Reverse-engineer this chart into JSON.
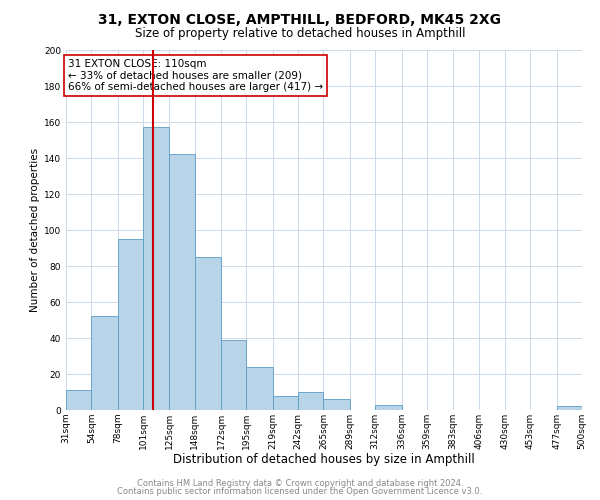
{
  "title_line1": "31, EXTON CLOSE, AMPTHILL, BEDFORD, MK45 2XG",
  "title_line2": "Size of property relative to detached houses in Ampthill",
  "xlabel": "Distribution of detached houses by size in Ampthill",
  "ylabel": "Number of detached properties",
  "bar_left_edges": [
    31,
    54,
    78,
    101,
    125,
    148,
    172,
    195,
    219,
    242,
    265,
    289,
    312,
    336,
    359,
    383,
    406,
    430,
    453,
    477
  ],
  "bar_widths": [
    23,
    24,
    23,
    24,
    23,
    24,
    23,
    24,
    23,
    23,
    24,
    23,
    24,
    23,
    24,
    23,
    24,
    23,
    24,
    23
  ],
  "bar_heights": [
    11,
    52,
    95,
    157,
    142,
    85,
    39,
    24,
    8,
    10,
    6,
    0,
    3,
    0,
    0,
    0,
    0,
    0,
    0,
    2
  ],
  "bar_color": "#b8d4e8",
  "bar_edge_color": "#5a9cc5",
  "vline_x": 110,
  "vline_color": "#cc0000",
  "vline_linewidth": 1.5,
  "annotation_line1": "31 EXTON CLOSE: 110sqm",
  "annotation_line2": "← 33% of detached houses are smaller (209)",
  "annotation_line3": "66% of semi-detached houses are larger (417) →",
  "annotation_box_color": "white",
  "annotation_box_edge_color": "#cc0000",
  "annotation_fontsize": 7.5,
  "xlim_left": 31,
  "xlim_right": 500,
  "ylim_top": 200,
  "yticks": [
    0,
    20,
    40,
    60,
    80,
    100,
    120,
    140,
    160,
    180,
    200
  ],
  "xtick_labels": [
    "31sqm",
    "54sqm",
    "78sqm",
    "101sqm",
    "125sqm",
    "148sqm",
    "172sqm",
    "195sqm",
    "219sqm",
    "242sqm",
    "265sqm",
    "289sqm",
    "312sqm",
    "336sqm",
    "359sqm",
    "383sqm",
    "406sqm",
    "430sqm",
    "453sqm",
    "477sqm",
    "500sqm"
  ],
  "xtick_positions": [
    31,
    54,
    78,
    101,
    125,
    148,
    172,
    195,
    219,
    242,
    265,
    289,
    312,
    336,
    359,
    383,
    406,
    430,
    453,
    477,
    500
  ],
  "footer_line1": "Contains HM Land Registry data © Crown copyright and database right 2024.",
  "footer_line2": "Contains public sector information licensed under the Open Government Licence v3.0.",
  "background_color": "#ffffff",
  "grid_color": "#ccd9e8",
  "title1_fontsize": 10,
  "title2_fontsize": 8.5,
  "xlabel_fontsize": 8.5,
  "ylabel_fontsize": 7.5,
  "tick_fontsize": 6.5,
  "footer_fontsize": 6.0
}
